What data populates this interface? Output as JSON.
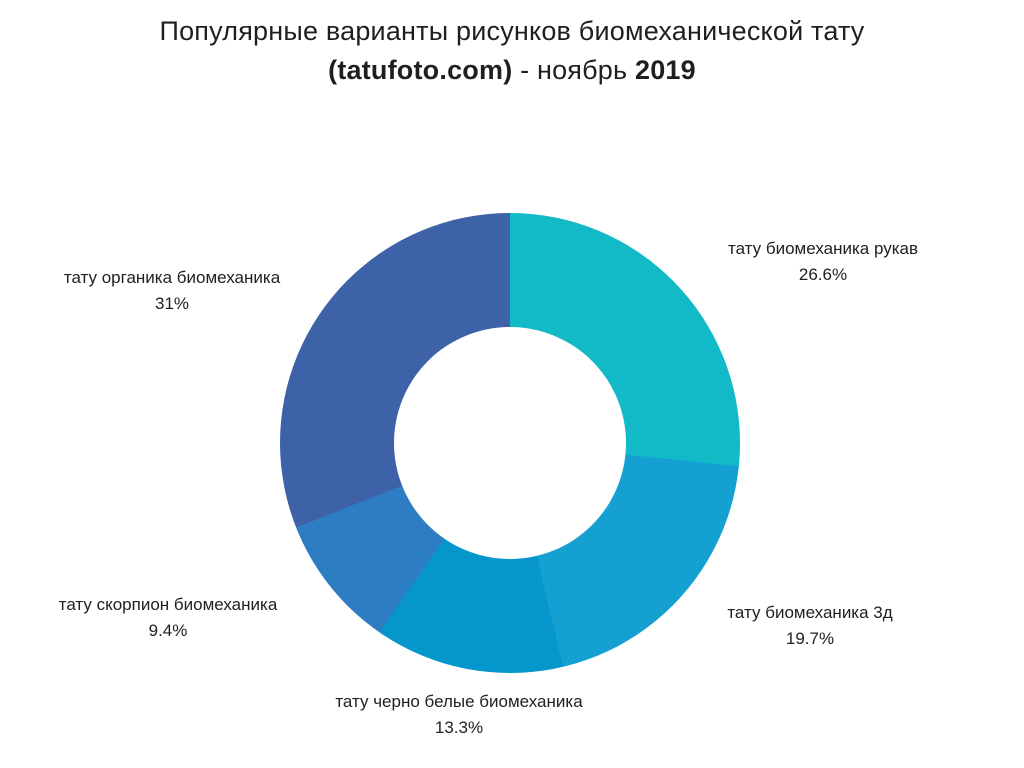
{
  "title": {
    "line1": "Популярные варианты рисунков биомеханической тату",
    "line2_bold1": "(tatufoto.com)",
    "line2_mid": " - ноябрь ",
    "line2_bold2": "2019"
  },
  "chart_data": {
    "type": "pie",
    "subtype": "donut",
    "title": "Популярные варианты рисунков биомеханической тату (tatufoto.com) - ноябрь 2019",
    "start_angle_deg": 0,
    "direction": "clockwise",
    "inner_radius_ratio": 0.5,
    "legend": "none",
    "labels_position": "outside",
    "segments": [
      {
        "label": "тату биомеханика рукав",
        "value": 26.6,
        "display": "26.6%",
        "color": "#12b9c6"
      },
      {
        "label": "тату биомеханика 3д",
        "value": 19.7,
        "display": "19.7%",
        "color": "#14a0d1"
      },
      {
        "label": "тату черно белые биомеханика",
        "value": 13.3,
        "display": "13.3%",
        "color": "#0596cb"
      },
      {
        "label": "тату скорпион биомеханика",
        "value": 9.4,
        "display": "9.4%",
        "color": "#2d7dc3"
      },
      {
        "label": "тату органика биомеханика",
        "value": 31,
        "display": "31%",
        "color": "#3e62a8"
      }
    ]
  }
}
